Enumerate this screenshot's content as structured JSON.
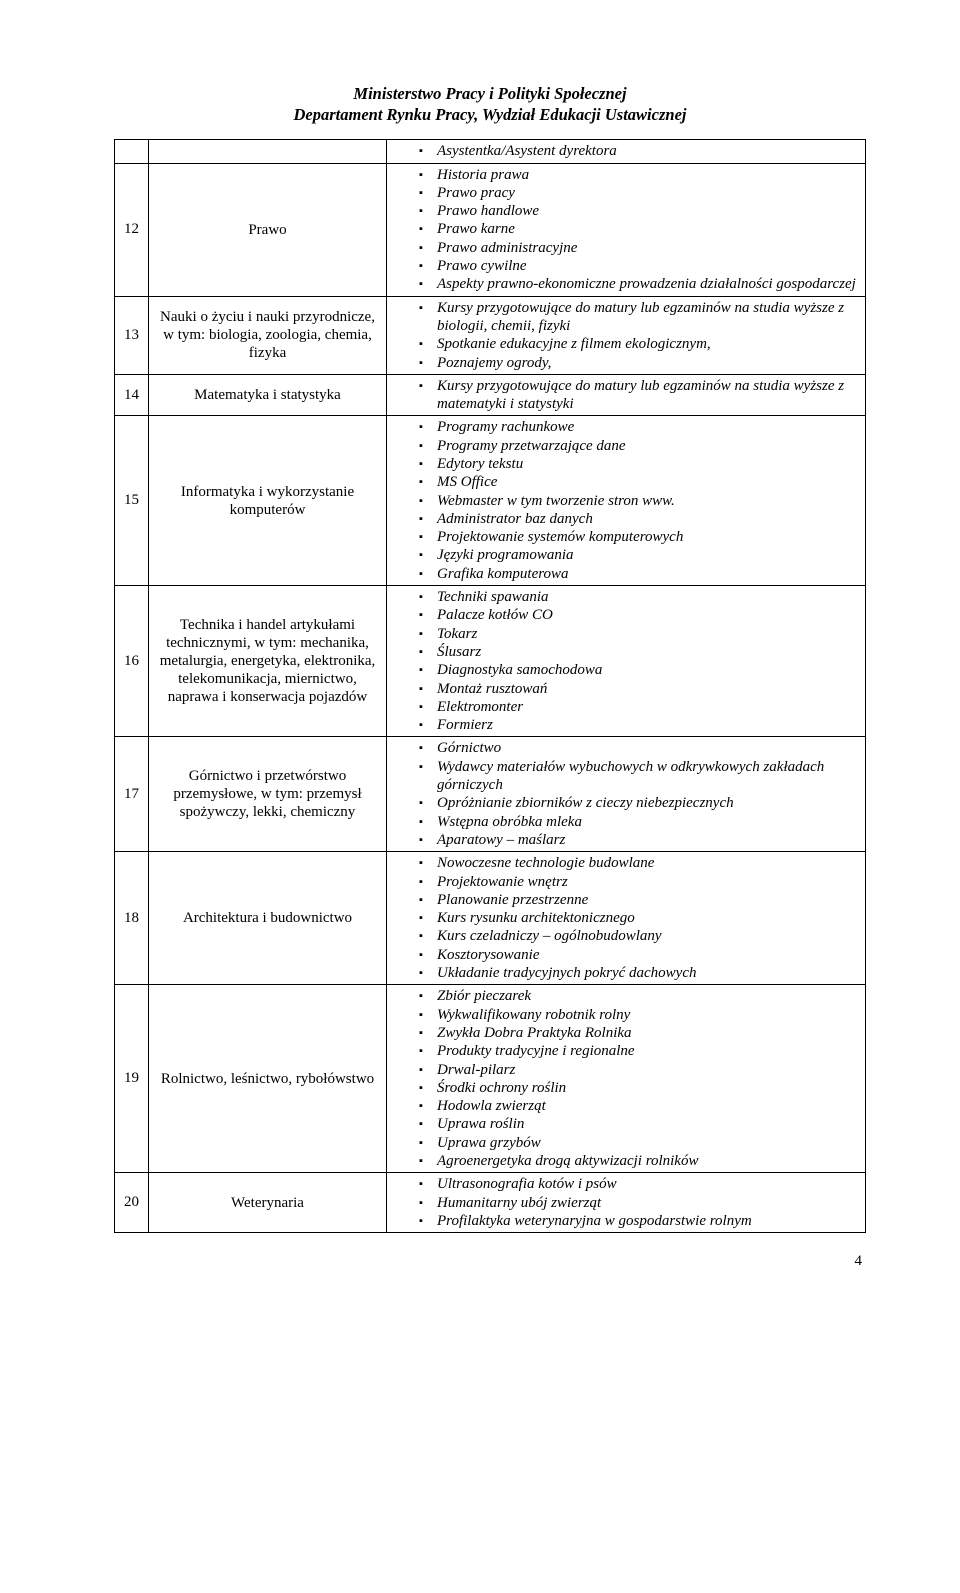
{
  "header": {
    "line1": "Ministerstwo Pracy i Polityki Społecznej",
    "line2": "Departament Rynku Pracy, Wydział Edukacji Ustawicznej"
  },
  "page_number": "4",
  "pre_rows": {
    "items": [
      "Asystentka/Asystent dyrektora"
    ]
  },
  "rows": [
    {
      "num": "12",
      "category": "Prawo",
      "items": [
        "Historia prawa",
        "Prawo pracy",
        "Prawo handlowe",
        "Prawo karne",
        "Prawo administracyjne",
        "Prawo cywilne",
        "Aspekty prawno-ekonomiczne prowadzenia działalności gospodarczej"
      ]
    },
    {
      "num": "13",
      "category": "Nauki o życiu i nauki przyrodnicze, w tym: biologia, zoologia, chemia, fizyka",
      "items": [
        "Kursy przygotowujące do matury lub egzaminów na studia wyższe  z biologii, chemii, fizyki",
        "Spotkanie edukacyjne z filmem ekologicznym,",
        "Poznajemy ogrody,"
      ]
    },
    {
      "num": "14",
      "category": "Matematyka i statystyka",
      "items": [
        "Kursy przygotowujące do matury lub egzaminów na studia wyższe  z matematyki i  statystyki"
      ]
    },
    {
      "num": "15",
      "category": "Informatyka i wykorzystanie komputerów",
      "items": [
        "Programy rachunkowe",
        "Programy przetwarzające dane",
        "Edytory tekstu",
        "MS Office",
        "Webmaster w tym tworzenie stron www.",
        "Administrator baz danych",
        "Projektowanie systemów komputerowych",
        "Języki programowania",
        "Grafika komputerowa"
      ]
    },
    {
      "num": "16",
      "category": "Technika i handel artykułami technicznymi, w tym: mechanika, metalurgia, energetyka, elektronika, telekomunikacja, miernictwo, naprawa i konserwacja pojazdów",
      "items": [
        "Techniki spawania",
        "Palacze kotłów CO",
        "Tokarz",
        "Ślusarz",
        "Diagnostyka samochodowa",
        "Montaż rusztowań",
        "Elektromonter",
        "Formierz"
      ]
    },
    {
      "num": "17",
      "category": "Górnictwo i przetwórstwo przemysłowe, w tym: przemysł spożywczy, lekki, chemiczny",
      "items": [
        "Górnictwo",
        "Wydawcy materiałów wybuchowych w odkrywkowych zakładach górniczych",
        "Opróżnianie zbiorników z cieczy niebezpiecznych",
        "Wstępna obróbka mleka",
        "Aparatowy – maślarz"
      ]
    },
    {
      "num": "18",
      "category": "Architektura i budownictwo",
      "items": [
        "Nowoczesne technologie budowlane",
        "Projektowanie wnętrz",
        "Planowanie przestrzenne",
        "Kurs rysunku architektonicznego",
        "Kurs czeladniczy – ogólnobudowlany",
        "Kosztorysowanie",
        "Układanie tradycyjnych pokryć dachowych"
      ]
    },
    {
      "num": "19",
      "category": "Rolnictwo, leśnictwo, rybołówstwo",
      "items": [
        "Zbiór pieczarek",
        "Wykwalifikowany robotnik rolny",
        "Zwykła Dobra Praktyka Rolnika",
        "Produkty tradycyjne i regionalne",
        "Drwal-pilarz",
        "Środki ochrony roślin",
        "Hodowla zwierząt",
        "Uprawa roślin",
        "Uprawa grzybów",
        "Agroenergetyka drogą aktywizacji rolników"
      ]
    },
    {
      "num": "20",
      "category": "Weterynaria",
      "items": [
        "Ultrasonografia kotów i psów",
        "Humanitarny ubój zwierząt",
        "Profilaktyka weterynaryjna w gospodarstwie rolnym"
      ]
    }
  ]
}
